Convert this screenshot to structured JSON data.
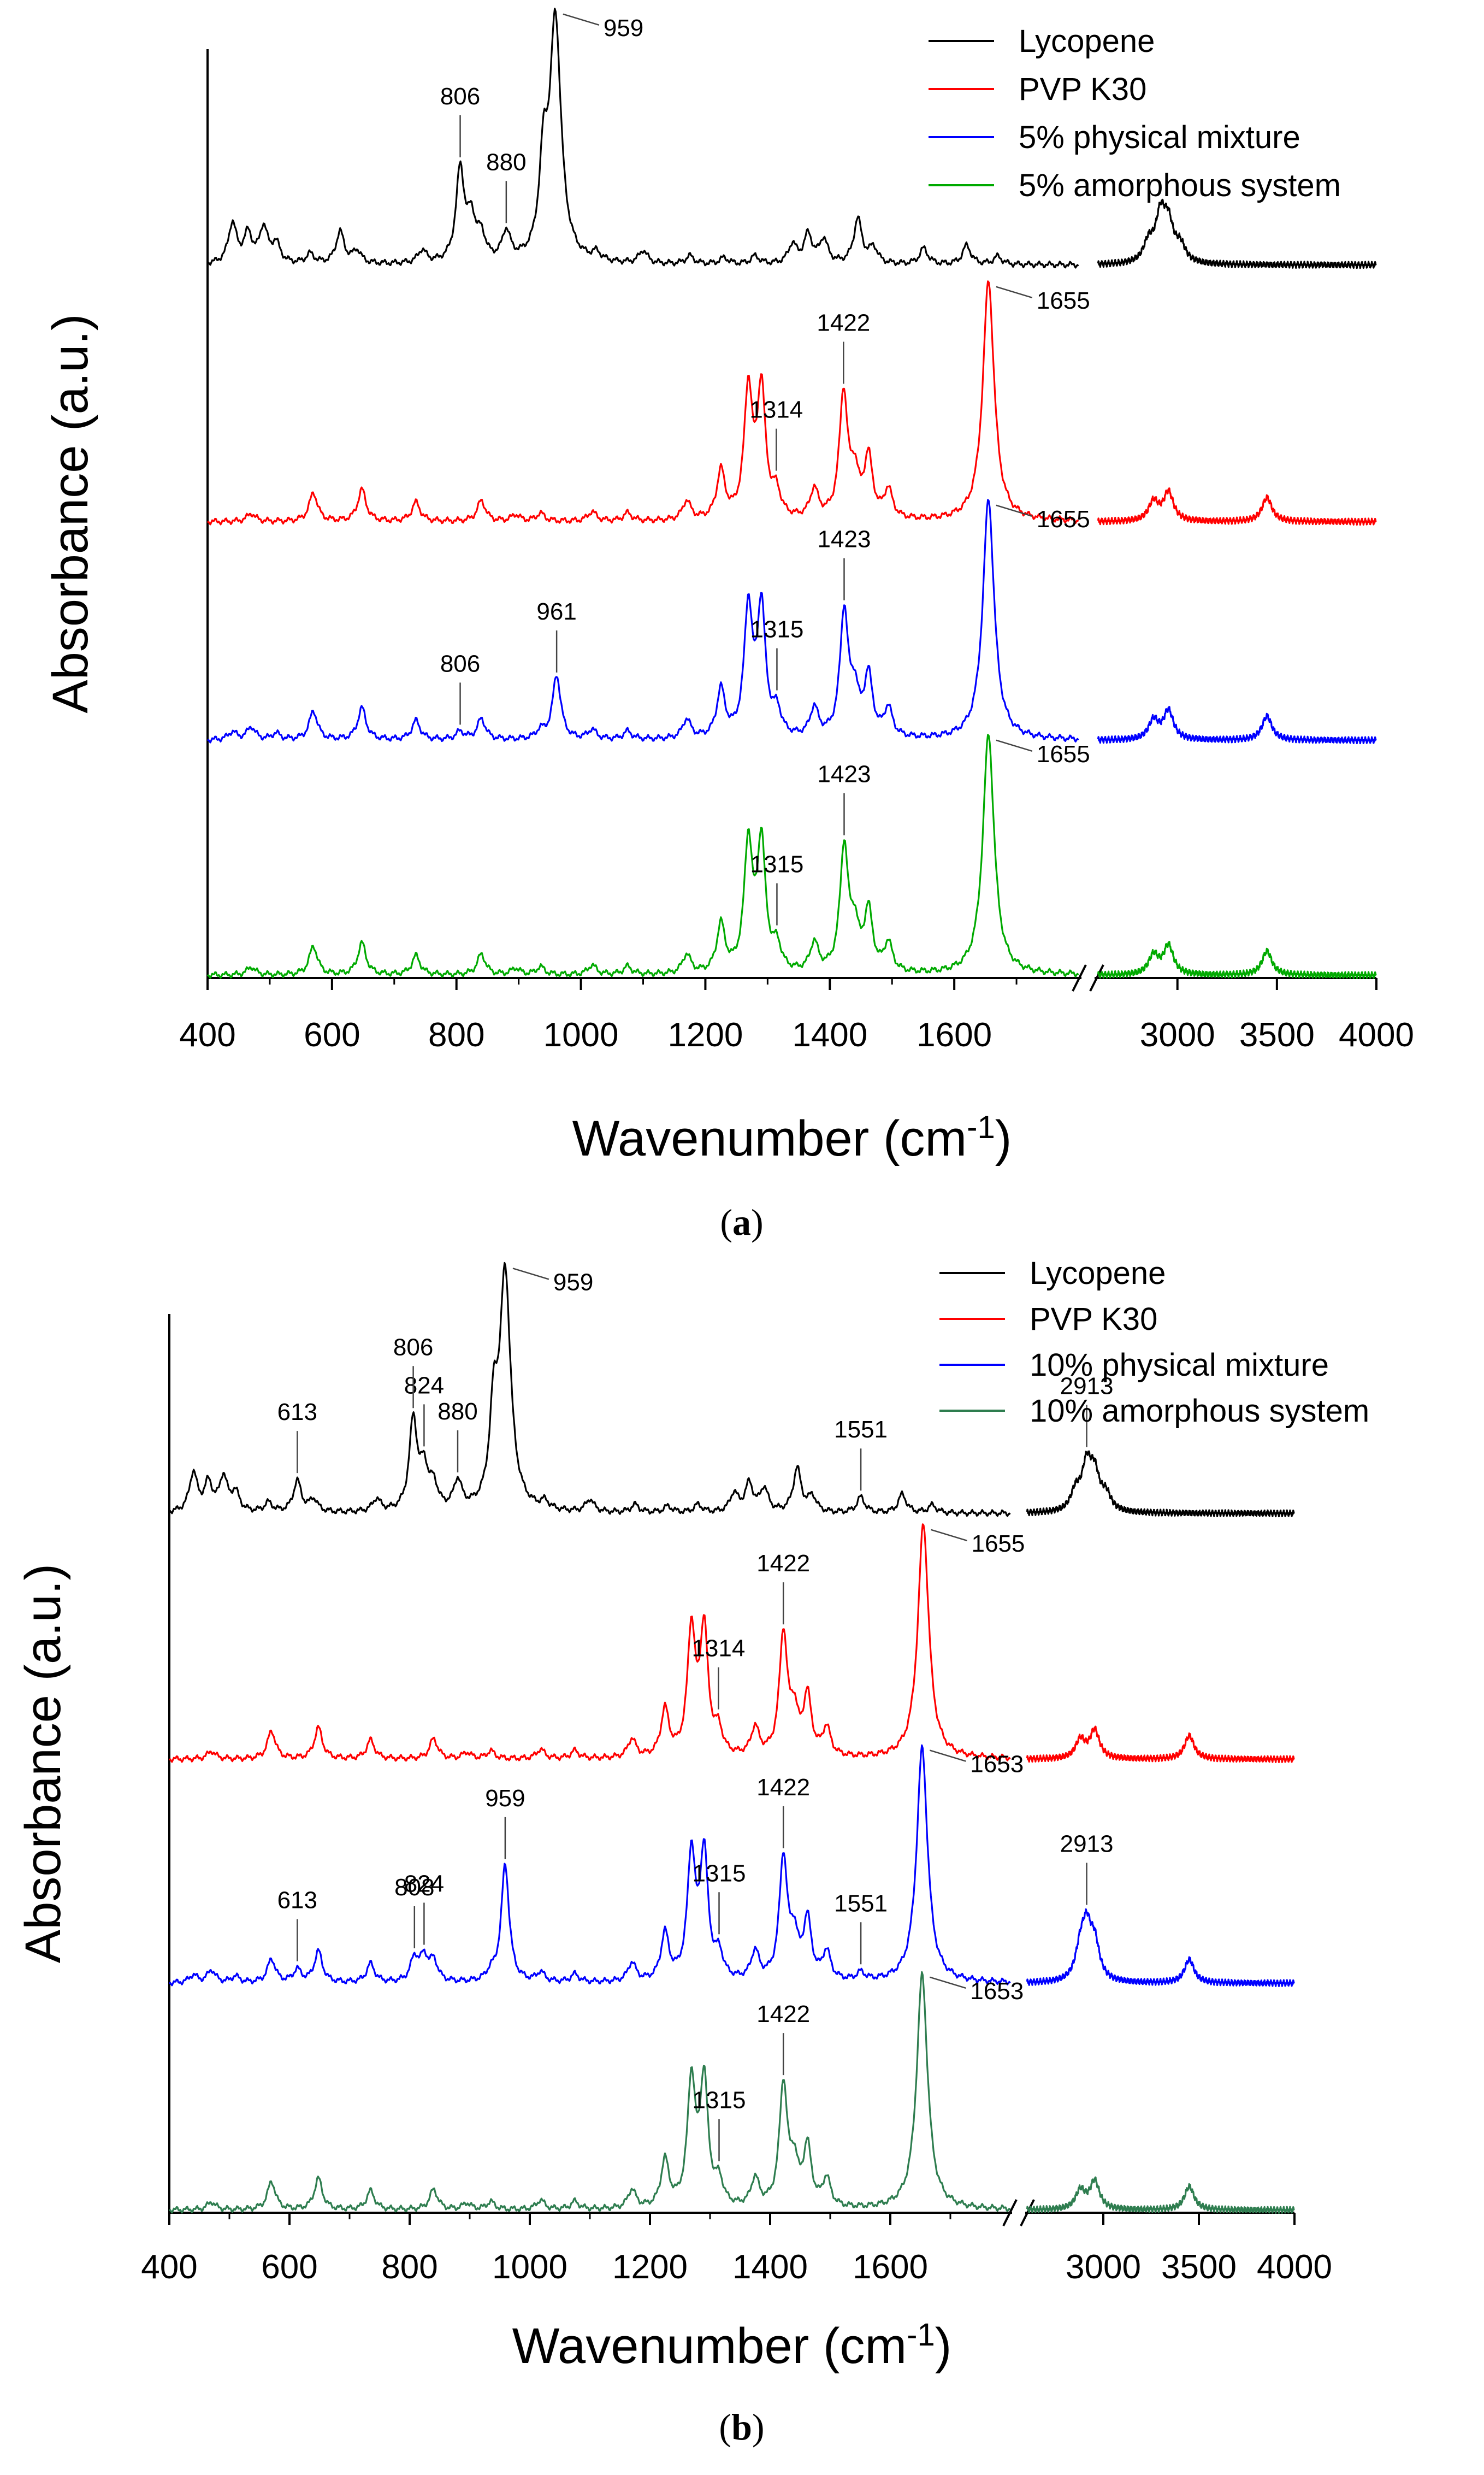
{
  "chart_data": [
    {
      "panel_label": "a",
      "type": "line",
      "xlabel": "Wavenumber (cm",
      "xlabel_sup": "-1",
      "xlabel_close": ")",
      "ylabel": "Absorbance (a.u.)",
      "x_segments": [
        [
          400,
          1800
        ],
        [
          2600,
          4000
        ]
      ],
      "x_ticks": [
        400,
        600,
        800,
        1000,
        1200,
        1400,
        1600,
        3000,
        3500,
        4000
      ],
      "series": [
        {
          "name": "Lycopene",
          "color": "#000000",
          "peaks": [
            [
              440,
              0.25
            ],
            [
              465,
              0.18
            ],
            [
              490,
              0.22
            ],
            [
              510,
              0.12
            ],
            [
              565,
              0.06
            ],
            [
              613,
              0.2
            ],
            [
              640,
              0.08
            ],
            [
              745,
              0.08
            ],
            [
              806,
              0.58
            ],
            [
              824,
              0.25
            ],
            [
              840,
              0.15
            ],
            [
              880,
              0.18
            ],
            [
              940,
              0.55
            ],
            [
              959,
              1.5
            ],
            [
              1025,
              0.05
            ],
            [
              1100,
              0.08
            ],
            [
              1175,
              0.05
            ],
            [
              1230,
              0.04
            ],
            [
              1280,
              0.05
            ],
            [
              1340,
              0.12
            ],
            [
              1365,
              0.18
            ],
            [
              1390,
              0.15
            ],
            [
              1445,
              0.28
            ],
            [
              1470,
              0.1
            ],
            [
              1551,
              0.1
            ],
            [
              1620,
              0.12
            ],
            [
              1670,
              0.05
            ],
            [
              2855,
              0.12
            ],
            [
              2915,
              0.28
            ],
            [
              2955,
              0.22
            ],
            [
              3015,
              0.1
            ]
          ]
        },
        {
          "name": "PVP K30",
          "color": "#ff0000",
          "peaks": [
            [
              470,
              0.05
            ],
            [
              570,
              0.18
            ],
            [
              648,
              0.2
            ],
            [
              735,
              0.12
            ],
            [
              840,
              0.13
            ],
            [
              895,
              0.04
            ],
            [
              935,
              0.05
            ],
            [
              1018,
              0.06
            ],
            [
              1075,
              0.05
            ],
            [
              1170,
              0.12
            ],
            [
              1225,
              0.3
            ],
            [
              1269,
              0.8
            ],
            [
              1290,
              0.8
            ],
            [
              1314,
              0.15
            ],
            [
              1375,
              0.18
            ],
            [
              1422,
              0.78
            ],
            [
              1440,
              0.25
            ],
            [
              1462,
              0.38
            ],
            [
              1494,
              0.18
            ],
            [
              1655,
              1.5
            ],
            [
              2880,
              0.12
            ],
            [
              2955,
              0.18
            ],
            [
              3450,
              0.15
            ]
          ]
        },
        {
          "name": "5% physical mixture",
          "color": "#0000ff",
          "peaks": [
            [
              440,
              0.05
            ],
            [
              470,
              0.08
            ],
            [
              510,
              0.04
            ],
            [
              570,
              0.18
            ],
            [
              648,
              0.2
            ],
            [
              735,
              0.12
            ],
            [
              806,
              0.05
            ],
            [
              840,
              0.13
            ],
            [
              935,
              0.05
            ],
            [
              961,
              0.4
            ],
            [
              1018,
              0.06
            ],
            [
              1075,
              0.05
            ],
            [
              1170,
              0.12
            ],
            [
              1225,
              0.3
            ],
            [
              1269,
              0.8
            ],
            [
              1290,
              0.8
            ],
            [
              1315,
              0.15
            ],
            [
              1375,
              0.18
            ],
            [
              1423,
              0.78
            ],
            [
              1440,
              0.25
            ],
            [
              1462,
              0.38
            ],
            [
              1494,
              0.18
            ],
            [
              1655,
              1.5
            ],
            [
              2880,
              0.12
            ],
            [
              2955,
              0.18
            ],
            [
              3450,
              0.15
            ]
          ]
        },
        {
          "name": "5% amorphous system",
          "color": "#00aa00",
          "peaks": [
            [
              470,
              0.05
            ],
            [
              570,
              0.18
            ],
            [
              648,
              0.2
            ],
            [
              735,
              0.12
            ],
            [
              840,
              0.13
            ],
            [
              895,
              0.04
            ],
            [
              935,
              0.05
            ],
            [
              1018,
              0.06
            ],
            [
              1075,
              0.05
            ],
            [
              1170,
              0.12
            ],
            [
              1225,
              0.3
            ],
            [
              1269,
              0.8
            ],
            [
              1290,
              0.8
            ],
            [
              1315,
              0.15
            ],
            [
              1375,
              0.18
            ],
            [
              1423,
              0.78
            ],
            [
              1440,
              0.25
            ],
            [
              1462,
              0.38
            ],
            [
              1494,
              0.18
            ],
            [
              1655,
              1.5
            ],
            [
              2880,
              0.12
            ],
            [
              2955,
              0.18
            ],
            [
              3450,
              0.15
            ]
          ]
        }
      ],
      "annotations": [
        {
          "text": "959",
          "series": 0,
          "x": 959
        },
        {
          "text": "806",
          "series": 0,
          "x": 806
        },
        {
          "text": "880",
          "series": 0,
          "x": 880
        },
        {
          "text": "1314",
          "series": 1,
          "x": 1314
        },
        {
          "text": "1422",
          "series": 1,
          "x": 1422
        },
        {
          "text": "1655",
          "series": 1,
          "x": 1655
        },
        {
          "text": "806",
          "series": 2,
          "x": 806
        },
        {
          "text": "961",
          "series": 2,
          "x": 961
        },
        {
          "text": "1315",
          "series": 2,
          "x": 1315
        },
        {
          "text": "1423",
          "series": 2,
          "x": 1423
        },
        {
          "text": "1655",
          "series": 2,
          "x": 1655
        },
        {
          "text": "1315",
          "series": 3,
          "x": 1315
        },
        {
          "text": "1423",
          "series": 3,
          "x": 1423
        },
        {
          "text": "1655",
          "series": 3,
          "x": 1655
        }
      ]
    },
    {
      "panel_label": "b",
      "type": "line",
      "xlabel": "Wavenumber (cm",
      "xlabel_sup": "-1",
      "xlabel_close": ")",
      "ylabel": "Absorbance (a.u.)",
      "x_segments": [
        [
          400,
          1800
        ],
        [
          2600,
          4000
        ]
      ],
      "x_ticks": [
        400,
        600,
        800,
        1000,
        1200,
        1400,
        1600,
        3000,
        3500,
        4000
      ],
      "series": [
        {
          "name": "Lycopene",
          "color": "#000000",
          "peaks": [
            [
              440,
              0.25
            ],
            [
              465,
              0.18
            ],
            [
              490,
              0.22
            ],
            [
              510,
              0.12
            ],
            [
              565,
              0.06
            ],
            [
              613,
              0.2
            ],
            [
              640,
              0.08
            ],
            [
              745,
              0.08
            ],
            [
              806,
              0.58
            ],
            [
              824,
              0.25
            ],
            [
              840,
              0.15
            ],
            [
              880,
              0.18
            ],
            [
              940,
              0.55
            ],
            [
              959,
              1.5
            ],
            [
              1025,
              0.05
            ],
            [
              1100,
              0.08
            ],
            [
              1175,
              0.05
            ],
            [
              1230,
              0.04
            ],
            [
              1280,
              0.05
            ],
            [
              1340,
              0.12
            ],
            [
              1365,
              0.18
            ],
            [
              1390,
              0.15
            ],
            [
              1445,
              0.28
            ],
            [
              1470,
              0.1
            ],
            [
              1551,
              0.1
            ],
            [
              1620,
              0.12
            ],
            [
              1670,
              0.05
            ],
            [
              2855,
              0.12
            ],
            [
              2913,
              0.28
            ],
            [
              2955,
              0.22
            ],
            [
              3015,
              0.1
            ]
          ]
        },
        {
          "name": "PVP K30",
          "color": "#ff0000",
          "peaks": [
            [
              470,
              0.05
            ],
            [
              570,
              0.18
            ],
            [
              648,
              0.2
            ],
            [
              735,
              0.12
            ],
            [
              840,
              0.13
            ],
            [
              895,
              0.04
            ],
            [
              935,
              0.05
            ],
            [
              1018,
              0.06
            ],
            [
              1075,
              0.05
            ],
            [
              1170,
              0.12
            ],
            [
              1225,
              0.3
            ],
            [
              1269,
              0.8
            ],
            [
              1290,
              0.8
            ],
            [
              1314,
              0.15
            ],
            [
              1375,
              0.18
            ],
            [
              1422,
              0.78
            ],
            [
              1440,
              0.25
            ],
            [
              1462,
              0.38
            ],
            [
              1494,
              0.18
            ],
            [
              1655,
              1.5
            ],
            [
              2880,
              0.12
            ],
            [
              2955,
              0.18
            ],
            [
              3450,
              0.15
            ]
          ]
        },
        {
          "name": "10% physical mixture",
          "color": "#0000ff",
          "peaks": [
            [
              440,
              0.05
            ],
            [
              470,
              0.08
            ],
            [
              510,
              0.04
            ],
            [
              570,
              0.15
            ],
            [
              613,
              0.08
            ],
            [
              648,
              0.2
            ],
            [
              735,
              0.12
            ],
            [
              808,
              0.15
            ],
            [
              824,
              0.15
            ],
            [
              840,
              0.13
            ],
            [
              935,
              0.05
            ],
            [
              959,
              0.75
            ],
            [
              1018,
              0.06
            ],
            [
              1075,
              0.05
            ],
            [
              1170,
              0.12
            ],
            [
              1225,
              0.3
            ],
            [
              1269,
              0.8
            ],
            [
              1290,
              0.8
            ],
            [
              1315,
              0.15
            ],
            [
              1375,
              0.18
            ],
            [
              1422,
              0.78
            ],
            [
              1440,
              0.25
            ],
            [
              1462,
              0.38
            ],
            [
              1494,
              0.18
            ],
            [
              1551,
              0.05
            ],
            [
              1653,
              1.5
            ],
            [
              2880,
              0.18
            ],
            [
              2913,
              0.3
            ],
            [
              2955,
              0.22
            ],
            [
              3450,
              0.15
            ]
          ]
        },
        {
          "name": "10% amorphous system",
          "color": "#2e7d4f",
          "peaks": [
            [
              470,
              0.05
            ],
            [
              570,
              0.18
            ],
            [
              648,
              0.2
            ],
            [
              735,
              0.12
            ],
            [
              840,
              0.13
            ],
            [
              895,
              0.04
            ],
            [
              935,
              0.05
            ],
            [
              1018,
              0.06
            ],
            [
              1075,
              0.05
            ],
            [
              1170,
              0.12
            ],
            [
              1225,
              0.3
            ],
            [
              1269,
              0.8
            ],
            [
              1290,
              0.8
            ],
            [
              1315,
              0.15
            ],
            [
              1375,
              0.18
            ],
            [
              1422,
              0.78
            ],
            [
              1440,
              0.25
            ],
            [
              1462,
              0.38
            ],
            [
              1494,
              0.18
            ],
            [
              1653,
              1.5
            ],
            [
              2880,
              0.12
            ],
            [
              2955,
              0.18
            ],
            [
              3450,
              0.15
            ]
          ]
        }
      ],
      "annotations": [
        {
          "text": "613",
          "series": 0,
          "x": 613
        },
        {
          "text": "824",
          "series": 0,
          "x": 824
        },
        {
          "text": "806",
          "series": 0,
          "x": 806
        },
        {
          "text": "880",
          "series": 0,
          "x": 880
        },
        {
          "text": "959",
          "series": 0,
          "x": 959
        },
        {
          "text": "1551",
          "series": 0,
          "x": 1551
        },
        {
          "text": "2913",
          "series": 0,
          "x": 2913
        },
        {
          "text": "1314",
          "series": 1,
          "x": 1314
        },
        {
          "text": "1422",
          "series": 1,
          "x": 1422
        },
        {
          "text": "1655",
          "series": 1,
          "x": 1655
        },
        {
          "text": "613",
          "series": 2,
          "x": 613
        },
        {
          "text": "824",
          "series": 2,
          "x": 824
        },
        {
          "text": "808",
          "series": 2,
          "x": 808
        },
        {
          "text": "959",
          "series": 2,
          "x": 959
        },
        {
          "text": "1315",
          "series": 2,
          "x": 1315
        },
        {
          "text": "1422",
          "series": 2,
          "x": 1422
        },
        {
          "text": "1551",
          "series": 2,
          "x": 1551
        },
        {
          "text": "1653",
          "series": 2,
          "x": 1653
        },
        {
          "text": "2913",
          "series": 2,
          "x": 2913
        },
        {
          "text": "1315",
          "series": 3,
          "x": 1315
        },
        {
          "text": "1422",
          "series": 3,
          "x": 1422
        },
        {
          "text": "1653",
          "series": 3,
          "x": 1653
        }
      ]
    }
  ]
}
